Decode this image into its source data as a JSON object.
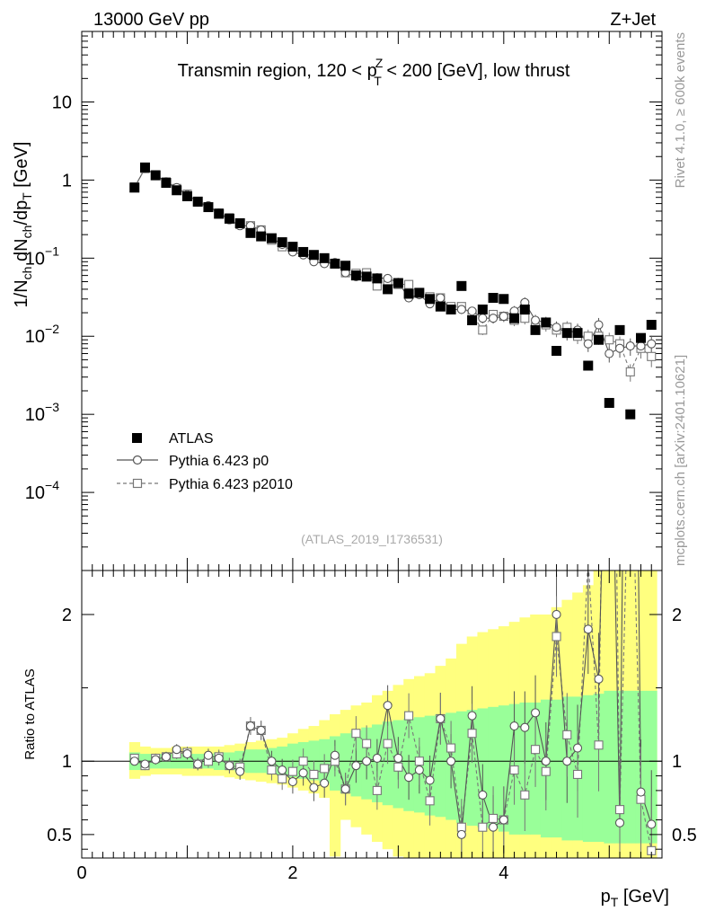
{
  "chart_data": {
    "type": "scatter",
    "header_left": "13000 GeV pp",
    "header_right": "Z+Jet",
    "title": "Transmin region, 120 < p_T^Z < 200 [GeV], low thrust",
    "title_parts": {
      "pre": "Transmin region, 120 < p",
      "sup": "Z",
      "sub": "T",
      "post": " < 200 [GeV], low thrust"
    },
    "analysis_id": "(ATLAS_2019_I1736531)",
    "side_label_top": "Rivet 4.1.0, ≥ 600k events",
    "side_label_bottom": "mcplots.cern.ch [arXiv:2401.10621]",
    "xlabel": "p_T [GeV]",
    "xlabel_parts": {
      "main": "p",
      "sub": "T",
      "unit": " [GeV]"
    },
    "ylabel": "1/N_ch dN_ch/dp_T [GeV]",
    "ylabel_parts": [
      "1/N",
      "ch",
      " dN",
      "ch",
      "/dp",
      "T",
      " [GeV]"
    ],
    "ratio_ylabel": "Ratio to ATLAS",
    "xlim": [
      0,
      5.5
    ],
    "ylim": [
      1e-05,
      80
    ],
    "yscale": "log",
    "ratio_ylim": [
      0.34,
      2.3
    ],
    "x_ticks": [
      "0",
      "2",
      "4"
    ],
    "y_ticks": [
      "10",
      "1",
      "10^-1",
      "10^-2",
      "10^-3",
      "10^-4"
    ],
    "y_tick_parts": [
      {
        "base": "10",
        "exp": ""
      },
      {
        "base": "1",
        "exp": ""
      },
      {
        "base": "10",
        "exp": "−1"
      },
      {
        "base": "10",
        "exp": "−2"
      },
      {
        "base": "10",
        "exp": "−3"
      },
      {
        "base": "10",
        "exp": "−4"
      }
    ],
    "ratio_ticks": [
      "2",
      "1",
      "0.5"
    ],
    "legend": {
      "position": "lower-left",
      "entries": [
        "ATLAS",
        "Pythia 6.423 p0",
        "Pythia 6.423 p2010"
      ]
    },
    "x": [
      0.5,
      0.6,
      0.7,
      0.8,
      0.9,
      1.0,
      1.1,
      1.2,
      1.3,
      1.4,
      1.5,
      1.6,
      1.7,
      1.8,
      1.9,
      2.0,
      2.1,
      2.2,
      2.3,
      2.4,
      2.5,
      2.6,
      2.7,
      2.8,
      2.9,
      3.0,
      3.1,
      3.2,
      3.3,
      3.4,
      3.5,
      3.6,
      3.7,
      3.8,
      3.9,
      4.0,
      4.1,
      4.2,
      4.3,
      4.4,
      4.5,
      4.6,
      4.7,
      4.8,
      4.9,
      5.0,
      5.1,
      5.2,
      5.3,
      5.4
    ],
    "series": [
      {
        "name": "ATLAS",
        "values": [
          0.8,
          1.45,
          1.15,
          0.92,
          0.74,
          0.62,
          0.53,
          0.45,
          0.37,
          0.32,
          0.28,
          0.21,
          0.19,
          0.18,
          0.16,
          0.14,
          0.12,
          0.11,
          0.1,
          0.085,
          0.08,
          0.06,
          0.058,
          0.055,
          0.04,
          0.048,
          0.035,
          0.036,
          0.03,
          0.024,
          0.022,
          0.044,
          0.016,
          0.022,
          0.031,
          0.03,
          0.017,
          0.022,
          0.012,
          0.015,
          0.0065,
          0.011,
          0.011,
          0.0042,
          0.009,
          0.0014,
          0.012,
          0.001,
          0.0095,
          0.014
        ]
      },
      {
        "name": "Pythia 6.423 p0",
        "values": [
          0.8,
          1.42,
          1.16,
          0.95,
          0.8,
          0.65,
          0.52,
          0.47,
          0.38,
          0.31,
          0.26,
          0.26,
          0.23,
          0.18,
          0.15,
          0.12,
          0.11,
          0.09,
          0.085,
          0.088,
          0.065,
          0.058,
          0.058,
          0.056,
          0.055,
          0.049,
          0.031,
          0.034,
          0.026,
          0.031,
          0.022,
          0.022,
          0.021,
          0.017,
          0.017,
          0.018,
          0.021,
          0.027,
          0.016,
          0.015,
          0.013,
          0.011,
          0.012,
          0.008,
          0.014,
          0.006,
          0.007,
          0.0075,
          0.0075,
          0.008
        ]
      },
      {
        "name": "Pythia 6.423 p2010",
        "values": [
          0.82,
          1.4,
          1.17,
          0.95,
          0.78,
          0.66,
          0.52,
          0.45,
          0.38,
          0.33,
          0.27,
          0.26,
          0.23,
          0.17,
          0.14,
          0.13,
          0.12,
          0.1,
          0.095,
          0.085,
          0.065,
          0.064,
          0.065,
          0.044,
          0.045,
          0.046,
          0.046,
          0.036,
          0.032,
          0.031,
          0.024,
          0.024,
          0.019,
          0.012,
          0.019,
          0.018,
          0.016,
          0.017,
          0.013,
          0.014,
          0.012,
          0.013,
          0.01,
          0.01,
          0.01,
          0.009,
          0.008,
          0.0035,
          0.007,
          0.0055
        ]
      }
    ],
    "ratio_series": [
      {
        "name": "Pythia 6.423 p0",
        "values": [
          1.0,
          0.98,
          1.01,
          1.03,
          1.08,
          1.05,
          0.98,
          1.04,
          1.02,
          0.97,
          0.93,
          1.24,
          1.21,
          1.0,
          0.94,
          0.86,
          0.92,
          0.82,
          0.85,
          1.04,
          0.81,
          0.97,
          1.0,
          1.02,
          1.38,
          1.02,
          0.89,
          0.94,
          0.87,
          1.29,
          1.0,
          0.5,
          1.31,
          0.77,
          0.55,
          0.6,
          1.24,
          1.23,
          1.33,
          1.0,
          2.0,
          1.0,
          1.09,
          1.9,
          1.56,
          4.3,
          0.58,
          7.5,
          0.79,
          0.57
        ]
      },
      {
        "name": "Pythia 6.423 p2010",
        "values": [
          1.02,
          0.97,
          1.02,
          1.03,
          1.05,
          1.06,
          0.98,
          1.0,
          1.03,
          0.97,
          0.96,
          1.24,
          1.21,
          0.94,
          0.88,
          0.93,
          1.0,
          0.91,
          0.95,
          1.0,
          0.81,
          1.19,
          1.12,
          0.8,
          1.12,
          0.96,
          1.31,
          1.0,
          0.73,
          1.29,
          1.09,
          0.55,
          1.19,
          0.55,
          0.61,
          0.6,
          0.94,
          0.77,
          1.08,
          0.93,
          1.85,
          1.18,
          0.91,
          2.38,
          1.11,
          6.4,
          0.67,
          3.5,
          0.74,
          0.39
        ]
      }
    ],
    "ratio_band_yellow": [
      [
        0.88,
        1.13
      ],
      [
        0.9,
        1.1
      ],
      [
        0.91,
        1.09
      ],
      [
        0.91,
        1.09
      ],
      [
        0.91,
        1.1
      ],
      [
        0.9,
        1.1
      ],
      [
        0.9,
        1.1
      ],
      [
        0.9,
        1.1
      ],
      [
        0.9,
        1.1
      ],
      [
        0.89,
        1.11
      ],
      [
        0.88,
        1.12
      ],
      [
        0.87,
        1.13
      ],
      [
        0.86,
        1.14
      ],
      [
        0.85,
        1.15
      ],
      [
        0.84,
        1.16
      ],
      [
        0.82,
        1.19
      ],
      [
        0.8,
        1.22
      ],
      [
        0.78,
        1.24
      ],
      [
        0.75,
        1.28
      ],
      [
        0.35,
        1.32
      ],
      [
        0.6,
        1.35
      ],
      [
        0.55,
        1.38
      ],
      [
        0.5,
        1.4
      ],
      [
        0.45,
        1.45
      ],
      [
        0.4,
        1.48
      ],
      [
        0.35,
        1.52
      ],
      [
        0.3,
        1.56
      ],
      [
        0.28,
        1.58
      ],
      [
        0.25,
        1.6
      ],
      [
        0.2,
        1.65
      ],
      [
        0.15,
        1.7
      ],
      [
        0.1,
        1.8
      ],
      [
        0.08,
        1.85
      ],
      [
        0.05,
        1.88
      ],
      [
        0.05,
        1.9
      ],
      [
        0.05,
        1.92
      ],
      [
        0.05,
        1.95
      ],
      [
        0.05,
        1.98
      ],
      [
        0.05,
        2.0
      ],
      [
        0.05,
        2.0
      ],
      [
        0.05,
        2.05
      ],
      [
        0.05,
        2.1
      ],
      [
        0.05,
        2.15
      ],
      [
        0.05,
        2.2
      ],
      [
        0.05,
        2.3
      ],
      [
        0.05,
        2.4
      ],
      [
        0.05,
        2.4
      ],
      [
        0.05,
        2.4
      ],
      [
        0.05,
        2.4
      ],
      [
        0.05,
        2.4
      ]
    ],
    "ratio_band_green": [
      [
        0.94,
        1.06
      ],
      [
        0.95,
        1.05
      ],
      [
        0.95,
        1.05
      ],
      [
        0.95,
        1.05
      ],
      [
        0.95,
        1.05
      ],
      [
        0.95,
        1.05
      ],
      [
        0.95,
        1.05
      ],
      [
        0.95,
        1.05
      ],
      [
        0.94,
        1.06
      ],
      [
        0.94,
        1.06
      ],
      [
        0.93,
        1.07
      ],
      [
        0.92,
        1.08
      ],
      [
        0.92,
        1.08
      ],
      [
        0.91,
        1.09
      ],
      [
        0.9,
        1.1
      ],
      [
        0.89,
        1.12
      ],
      [
        0.88,
        1.13
      ],
      [
        0.87,
        1.14
      ],
      [
        0.85,
        1.15
      ],
      [
        0.8,
        1.17
      ],
      [
        0.78,
        1.19
      ],
      [
        0.76,
        1.21
      ],
      [
        0.74,
        1.23
      ],
      [
        0.72,
        1.25
      ],
      [
        0.7,
        1.27
      ],
      [
        0.68,
        1.28
      ],
      [
        0.66,
        1.29
      ],
      [
        0.65,
        1.3
      ],
      [
        0.63,
        1.31
      ],
      [
        0.62,
        1.32
      ],
      [
        0.6,
        1.33
      ],
      [
        0.58,
        1.34
      ],
      [
        0.56,
        1.35
      ],
      [
        0.55,
        1.36
      ],
      [
        0.54,
        1.37
      ],
      [
        0.52,
        1.38
      ],
      [
        0.5,
        1.39
      ],
      [
        0.5,
        1.4
      ],
      [
        0.5,
        1.4
      ],
      [
        0.48,
        1.42
      ],
      [
        0.48,
        1.42
      ],
      [
        0.46,
        1.44
      ],
      [
        0.46,
        1.44
      ],
      [
        0.45,
        1.45
      ],
      [
        0.45,
        1.46
      ],
      [
        0.44,
        1.48
      ],
      [
        0.44,
        1.48
      ],
      [
        0.44,
        1.48
      ],
      [
        0.44,
        1.48
      ],
      [
        0.44,
        1.48
      ]
    ],
    "colors": {
      "data": "#000000",
      "p0": "#555555",
      "p2010": "#777777",
      "band_yellow": "#ffff7f",
      "band_green": "#99ff99",
      "side_label": "#999999",
      "analysis": "#aaaaaa"
    }
  }
}
